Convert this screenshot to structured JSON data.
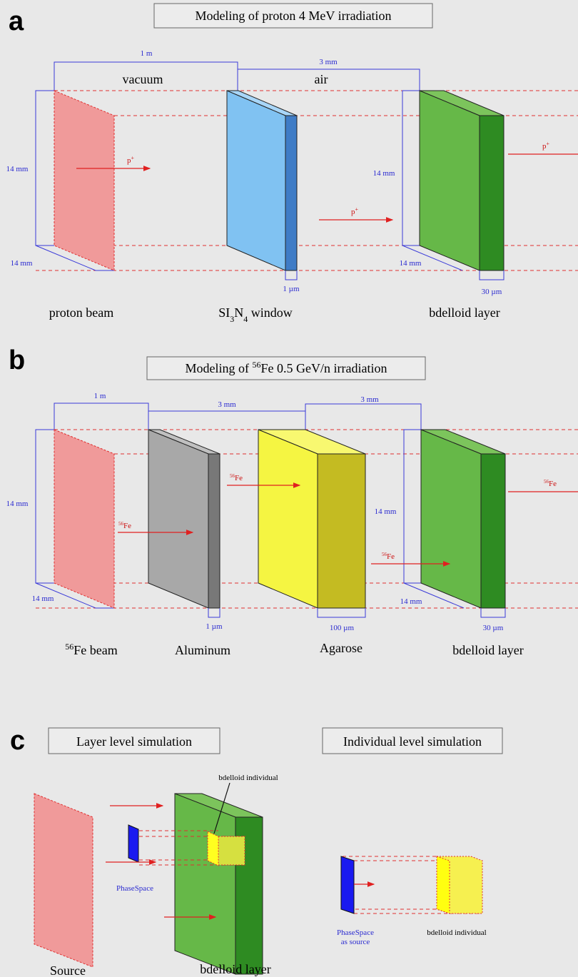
{
  "panel_a": {
    "letter": "a",
    "title": "Modeling of proton 4 MeV irradiation",
    "dim_beam_to_window": "1 m",
    "dim_window_to_layer": "3 mm",
    "medium_1": "vacuum",
    "medium_2": "air",
    "beam_height": "14 mm",
    "beam_depth": "14 mm",
    "window_thickness": "1 µm",
    "layer_height": "14 mm",
    "layer_depth": "14 mm",
    "layer_thickness": "30 µm",
    "particle": [
      "p",
      "+"
    ],
    "beam_label": "proton beam",
    "window_label": [
      "SI",
      "3",
      "N",
      "4",
      " window"
    ],
    "layer_label": "bdelloid layer"
  },
  "panel_b": {
    "letter": "b",
    "title": [
      "Modeling of ",
      "56",
      "Fe 0.5 GeV/n irradiation"
    ],
    "dim_beam_to_aluminum": "1 m",
    "dim_aluminum_to_agarose": "3 mm",
    "dim_agarose_to_layer": "3 mm",
    "beam_height": "14 mm",
    "beam_depth": "14 mm",
    "aluminum_thickness": "1 µm",
    "agarose_thickness": "100 µm",
    "layer_height": "14 mm",
    "layer_depth": "14 mm",
    "layer_thickness": "30 µm",
    "particle": [
      "56",
      "Fe"
    ],
    "beam_label": [
      "56",
      "Fe beam"
    ],
    "aluminum_label": "Aluminum",
    "agarose_label": "Agarose",
    "layer_label": "bdelloid layer"
  },
  "panel_c": {
    "letter": "c",
    "layer_title": "Layer level simulation",
    "individual_title": "Individual level simulation",
    "individual_callout": "bdelloid individual",
    "phase_space": "PhaseSpace",
    "source_label": "Source",
    "layer_label": "bdelloid layer",
    "phase_space_source": [
      "PhaseSpace",
      "as source"
    ],
    "individual_label": "bdelloid individual"
  }
}
